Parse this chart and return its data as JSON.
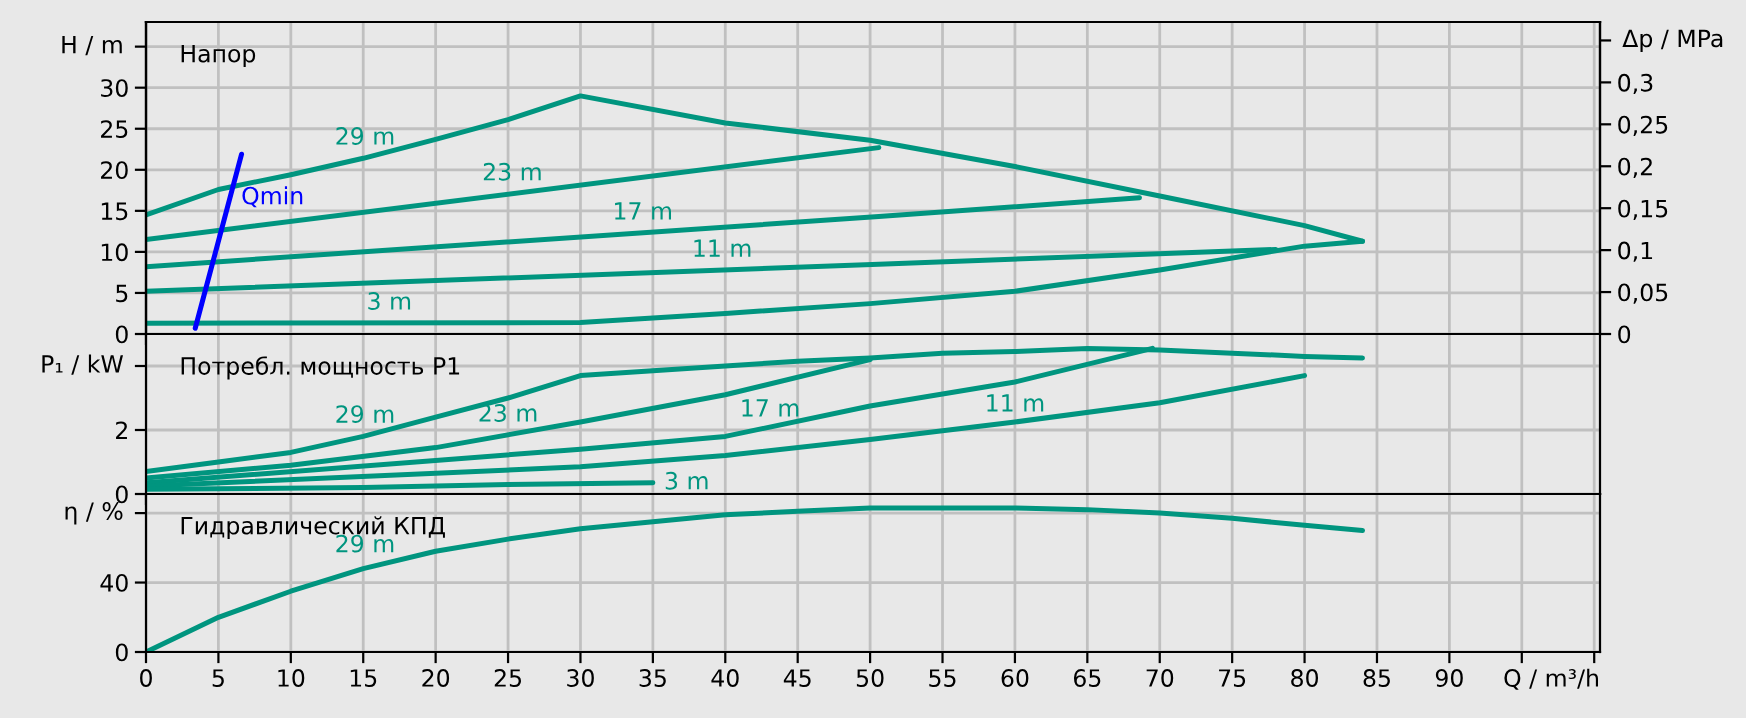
{
  "chart_data": [
    {
      "type": "line",
      "title": "Напор",
      "ylabel": "H / m",
      "y2label": "Δp / MPa",
      "xlim": [
        0,
        100.4
      ],
      "xticks": [
        0,
        5,
        10,
        15,
        20,
        25,
        30,
        35,
        40,
        45,
        50,
        55,
        60,
        65,
        70,
        75,
        80,
        85,
        90,
        95,
        100
      ],
      "ylim": [
        0,
        38
      ],
      "yticks": [
        0,
        5,
        10,
        15,
        20,
        25,
        30,
        {
          "value": 35,
          "label": null
        }
      ],
      "y2lim": [
        0,
        0.372
      ],
      "y2ticks": [
        0,
        {
          "value": 0.05,
          "label": "0,05"
        },
        {
          "value": 0.1,
          "label": "0,1"
        },
        {
          "value": 0.15,
          "label": "0,15"
        },
        {
          "value": 0.2,
          "label": "0,2"
        },
        {
          "value": 0.25,
          "label": "0,25"
        },
        {
          "value": 0.3,
          "label": "0,3"
        },
        {
          "value": 0.35,
          "label": null
        }
      ],
      "grid": true,
      "tick_labels": "y",
      "series": [
        {
          "name": "29 m",
          "color": "#00957f",
          "x": [
            0,
            5,
            10,
            15,
            20,
            25,
            30,
            40,
            50,
            60,
            70,
            80,
            84
          ],
          "values": [
            14.5,
            17.6,
            19.4,
            21.4,
            23.7,
            26.1,
            29,
            25.7,
            23.6,
            20.4,
            16.8,
            13.2,
            11.3
          ]
        },
        {
          "name": "23 m",
          "color": "#00957f",
          "x": [
            0,
            50.6
          ],
          "values": [
            11.5,
            22.7
          ]
        },
        {
          "name": "17 m",
          "color": "#00957f",
          "x": [
            0,
            50.6,
            68.6
          ],
          "values": [
            8.2,
            14.3,
            16.6
          ]
        },
        {
          "name": "11 m",
          "color": "#00957f",
          "x": [
            0,
            50.6,
            78
          ],
          "values": [
            5.2,
            8.5,
            10.3
          ]
        },
        {
          "name": "3 m",
          "color": "#00957f",
          "x": [
            0,
            30,
            40,
            50,
            60,
            70,
            80,
            84
          ],
          "values": [
            1.3,
            1.4,
            2.5,
            3.7,
            5.2,
            7.8,
            10.7,
            11.3
          ]
        },
        {
          "name": "Qmin",
          "color": "#0000ff",
          "x": [
            3.4,
            6.6
          ],
          "values": [
            0.7,
            21.9
          ]
        }
      ]
    },
    {
      "type": "line",
      "title": "Потребл. мощность P1",
      "ylabel": "P₁ / kW",
      "xlim": [
        0,
        100.4
      ],
      "xticks": [
        0,
        5,
        10,
        15,
        20,
        25,
        30,
        35,
        40,
        45,
        50,
        55,
        60,
        65,
        70,
        75,
        80,
        85,
        90,
        95,
        100
      ],
      "ylim": [
        0,
        5
      ],
      "yticks": [
        0,
        2,
        {
          "value": 4,
          "label": null
        }
      ],
      "grid": true,
      "tick_labels": "y",
      "series": [
        {
          "name": "29 m",
          "color": "#00957f",
          "x": [
            0,
            5,
            10,
            15,
            20,
            25,
            30,
            35,
            40,
            45,
            50,
            55,
            60,
            65,
            70,
            75,
            80,
            84
          ],
          "values": [
            0.7,
            1.0,
            1.3,
            1.8,
            2.4,
            3.0,
            3.7,
            3.85,
            4.0,
            4.15,
            4.25,
            4.4,
            4.45,
            4.55,
            4.5,
            4.4,
            4.3,
            4.25
          ]
        },
        {
          "name": "23 m",
          "color": "#00957f",
          "x": [
            0,
            10,
            20,
            30,
            40,
            50
          ],
          "values": [
            0.5,
            0.9,
            1.45,
            2.25,
            3.1,
            4.2
          ]
        },
        {
          "name": "17 m",
          "color": "#00957f",
          "x": [
            0,
            30,
            40,
            50,
            60,
            69.5
          ],
          "values": [
            0.35,
            1.4,
            1.8,
            2.75,
            3.5,
            4.55
          ]
        },
        {
          "name": "11 m",
          "color": "#00957f",
          "x": [
            0,
            30,
            40,
            50,
            60,
            70,
            80
          ],
          "values": [
            0.25,
            0.85,
            1.2,
            1.7,
            2.25,
            2.85,
            3.7
          ]
        },
        {
          "name": "3 m",
          "color": "#00957f",
          "x": [
            0,
            15,
            25,
            35
          ],
          "values": [
            0.15,
            0.2,
            0.3,
            0.35
          ]
        }
      ]
    },
    {
      "type": "line",
      "title": "Гидравлический КПД",
      "ylabel": "η / %",
      "xlabel": "Q / m³/h",
      "xlim": [
        0,
        100.4
      ],
      "xticks": [
        0,
        5,
        10,
        15,
        20,
        25,
        30,
        35,
        40,
        45,
        50,
        55,
        60,
        65,
        70,
        75,
        80,
        85,
        90,
        {
          "value": 95,
          "label": null
        },
        {
          "value": 100,
          "label": null
        }
      ],
      "ylim": [
        0,
        91
      ],
      "yticks": [
        0,
        40,
        {
          "value": 80,
          "label": null
        }
      ],
      "grid": true,
      "series": [
        {
          "name": "29 m",
          "color": "#00957f",
          "x": [
            0,
            5,
            10,
            15,
            20,
            25,
            30,
            35,
            40,
            45,
            50,
            55,
            60,
            65,
            70,
            75,
            80,
            84
          ],
          "values": [
            0,
            20,
            35,
            48,
            58,
            65,
            71,
            75,
            79,
            81,
            83,
            83,
            83,
            82,
            80,
            77,
            73,
            70
          ]
        }
      ]
    }
  ]
}
